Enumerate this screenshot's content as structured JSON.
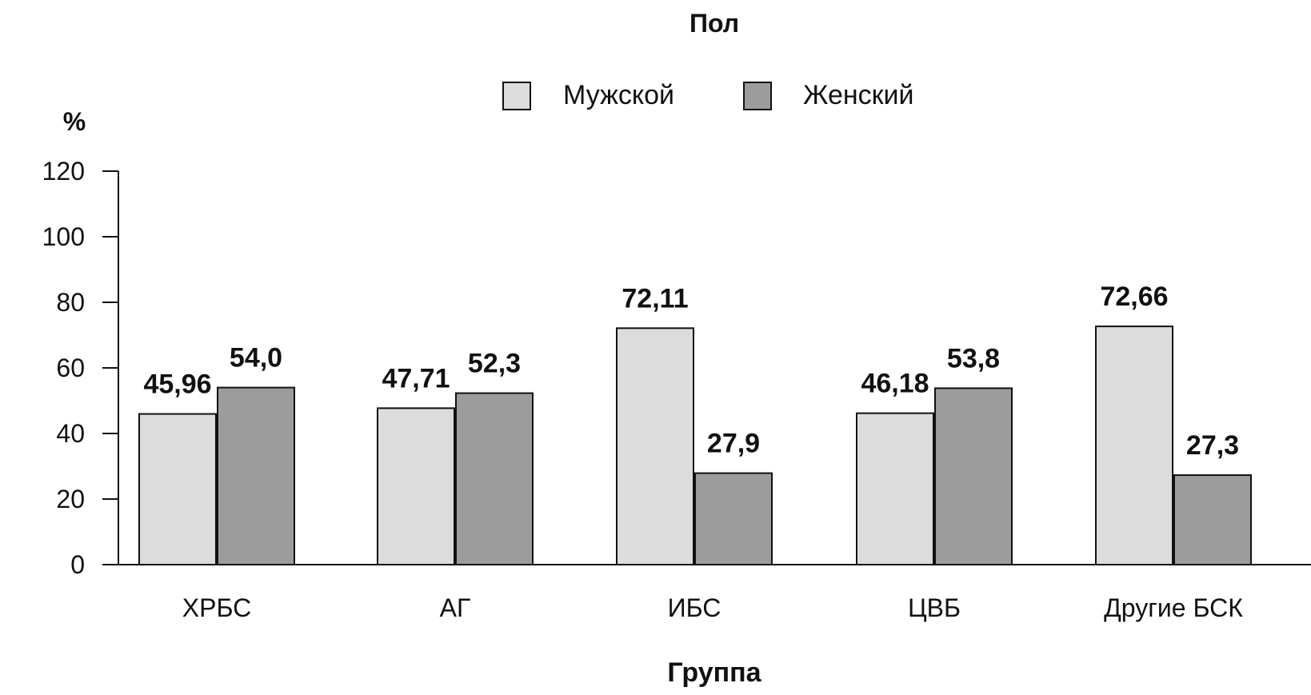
{
  "chart_data": {
    "type": "bar",
    "legend_title": "Пол",
    "legend_position": "top-center",
    "ylabel": "%",
    "xlabel": "Группа",
    "ylim": [
      0,
      120
    ],
    "yticks": [
      "0",
      "20",
      "40",
      "60",
      "80",
      "100",
      "120"
    ],
    "grid": false,
    "categories": [
      "ХРБС",
      "АГ",
      "ИБС",
      "ЦВБ",
      "Другие БСК"
    ],
    "series": [
      {
        "name": "Мужской",
        "color": "#dcdcdc",
        "values": [
          45.96,
          47.71,
          72.11,
          46.18,
          72.66
        ],
        "labels": [
          "45,96",
          "47,71",
          "72,11",
          "46,18",
          "72,66"
        ]
      },
      {
        "name": "Женский",
        "color": "#9c9c9c",
        "values": [
          54.0,
          52.3,
          27.9,
          53.8,
          27.3
        ],
        "labels": [
          "54,0",
          "52,3",
          "27,9",
          "53,8",
          "27,3"
        ]
      }
    ]
  }
}
